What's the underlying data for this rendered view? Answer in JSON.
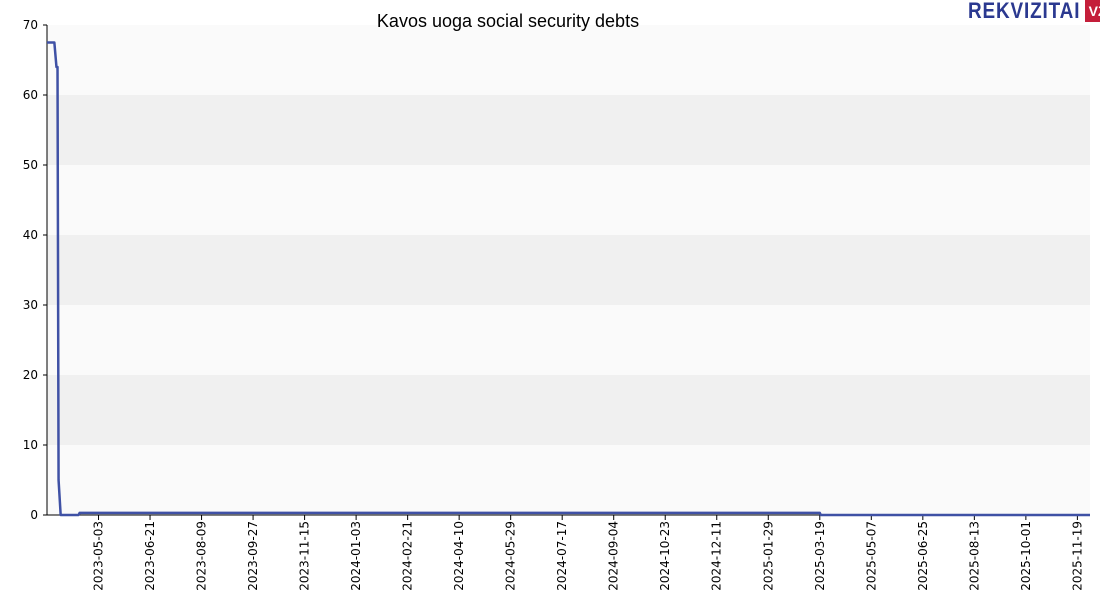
{
  "chart_data": {
    "type": "line",
    "title": "Kavos uoga social security debts",
    "xlabel": "",
    "ylabel": "",
    "ylim": [
      0,
      70
    ],
    "xlim": [
      "2023-03-15",
      "2025-12-01"
    ],
    "yticks": [
      0,
      10,
      20,
      30,
      40,
      50,
      60,
      70
    ],
    "xticks": [
      "2023-05-03",
      "2023-06-21",
      "2023-08-09",
      "2023-09-27",
      "2023-11-15",
      "2024-01-03",
      "2024-02-21",
      "2024-04-10",
      "2024-05-29",
      "2024-07-17",
      "2024-09-04",
      "2024-10-23",
      "2024-12-11",
      "2025-01-29",
      "2025-03-19",
      "2025-05-07",
      "2025-06-25",
      "2025-08-13",
      "2025-10-01",
      "2025-11-19"
    ],
    "grid": "horizontal alternating bands",
    "legend": "none",
    "series": [
      {
        "color": "#3f51a5",
        "points": [
          [
            "2023-03-15",
            67.5
          ],
          [
            "2023-03-22",
            67.5
          ],
          [
            "2023-03-24",
            64
          ],
          [
            "2023-03-25",
            64
          ],
          [
            "2023-03-26",
            5
          ],
          [
            "2023-03-28",
            0
          ],
          [
            "2023-04-14",
            0
          ],
          [
            "2023-04-15",
            0.3
          ],
          [
            "2025-03-19",
            0.3
          ],
          [
            "2025-03-20",
            0
          ],
          [
            "2025-12-01",
            0
          ]
        ]
      }
    ]
  },
  "logo": {
    "text": "REKVIZITAI",
    "badge": "VŽ",
    "text_color": "#2b3990",
    "badge_color": "#c41e3a"
  }
}
